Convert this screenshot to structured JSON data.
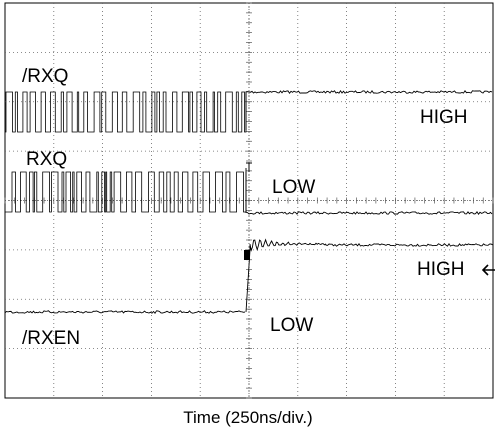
{
  "chart_data": {
    "type": "line",
    "title": "",
    "xlabel": "Time (250ns/div.)",
    "ylabel": "",
    "grid": true,
    "divisions": {
      "x": 10,
      "y": 8
    },
    "trigger_division": 5,
    "channels": [
      {
        "name": "/RXQ",
        "before_trigger": "toggling",
        "after_trigger": "HIGH"
      },
      {
        "name": "RXQ",
        "before_trigger": "toggling",
        "after_trigger": "LOW"
      },
      {
        "name": "/RXEN",
        "before_trigger": "LOW",
        "after_trigger": "HIGH"
      }
    ],
    "annotations": [
      {
        "text": "HIGH",
        "channel": "/RXQ"
      },
      {
        "text": "LOW",
        "channel": "RXQ"
      },
      {
        "text": "HIGH",
        "channel": "/RXEN",
        "marker": "arrow-left"
      },
      {
        "text": "LOW",
        "channel": "/RXEN"
      }
    ]
  }
}
